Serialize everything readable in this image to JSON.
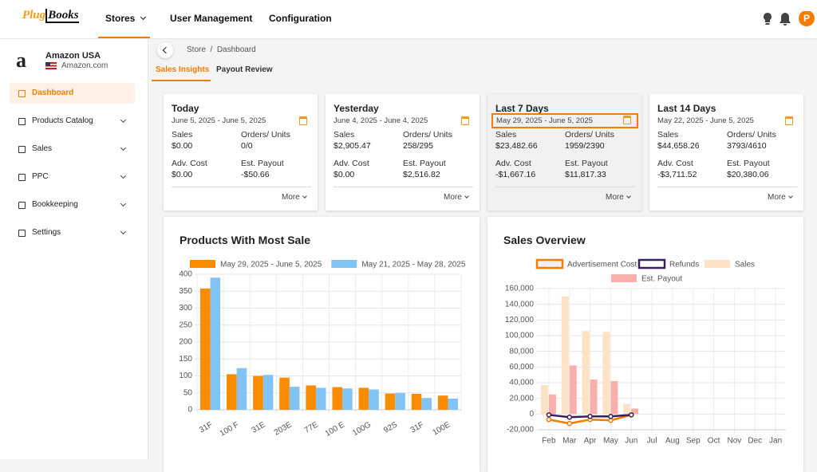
{
  "nav": {
    "logo": [
      "Plug",
      "Books"
    ],
    "items": [
      "Stores",
      "User Management",
      "Configuration"
    ],
    "avatar": "P"
  },
  "store": {
    "name": "Amazon USA",
    "domain": "Amazon.com"
  },
  "sidebar": [
    "Dashboard",
    "Products Catalog",
    "Sales",
    "PPC",
    "Bookkeeping",
    "Settings"
  ],
  "breadcrumb": [
    "Store",
    "Dashboard"
  ],
  "tabs": [
    "Sales Insights",
    "Payout Review"
  ],
  "selected_card": 2,
  "cards": [
    {
      "title": "Today",
      "range": "June 5, 2025 - June 5, 2025",
      "metrics": [
        {
          "label": "Sales",
          "value": "$0.00"
        },
        {
          "label": "Orders/ Units",
          "value": "0/0"
        },
        {
          "label": "Adv. Cost",
          "value": "$0.00"
        },
        {
          "label": "Est. Payout",
          "value": "-$50.66"
        }
      ],
      "more": "More"
    },
    {
      "title": "Yesterday",
      "range": "June 4, 2025 - June 4, 2025",
      "metrics": [
        {
          "label": "Sales",
          "value": "$2,905.47"
        },
        {
          "label": "Orders/ Units",
          "value": "258/295"
        },
        {
          "label": "Adv. Cost",
          "value": "$0.00"
        },
        {
          "label": "Est. Payout",
          "value": "$2,516.82"
        }
      ],
      "more": "More"
    },
    {
      "title": "Last 7 Days",
      "range": "May 29, 2025 - June 5, 2025",
      "metrics": [
        {
          "label": "Sales",
          "value": "$23,482.66"
        },
        {
          "label": "Orders/ Units",
          "value": "1959/2390"
        },
        {
          "label": "Adv. Cost",
          "value": "-$1,667.16"
        },
        {
          "label": "Est. Payout",
          "value": "$11,817.33"
        }
      ],
      "more": "More"
    },
    {
      "title": "Last 14 Days",
      "range": "May 22, 2025 - June 5, 2025",
      "metrics": [
        {
          "label": "Sales",
          "value": "$44,658.26"
        },
        {
          "label": "Orders/ Units",
          "value": "3793/4610"
        },
        {
          "label": "Adv. Cost",
          "value": "-$3,711.52"
        },
        {
          "label": "Est. Payout",
          "value": "$20,380.06"
        }
      ],
      "more": "More"
    }
  ],
  "charts": [
    {
      "type": "bar",
      "title": "Products With Most Sale",
      "grid": true,
      "categories": [
        "31F",
        "100 F",
        "31E",
        "203E",
        "77E",
        "100 E",
        "100G",
        "92S",
        "31F",
        "100E"
      ],
      "series": [
        {
          "name": "May 29, 2025 - June 5, 2025",
          "color": "#fb8c00",
          "values": [
            358,
            105,
            100,
            95,
            72,
            67,
            65,
            48,
            47,
            42
          ]
        },
        {
          "name": "May 21, 2025 - May 28, 2025",
          "color": "#82c3f6",
          "values": [
            390,
            123,
            103,
            68,
            65,
            63,
            60,
            50,
            35,
            33
          ]
        }
      ],
      "ylim": [
        0,
        400
      ],
      "yticks": [
        0,
        50,
        100,
        150,
        200,
        250,
        300,
        350,
        400
      ]
    },
    {
      "type": "combo",
      "title": "Sales Overview",
      "grid": true,
      "categories": [
        "Feb",
        "Mar",
        "Apr",
        "May",
        "Jun",
        "Jul",
        "Aug",
        "Sep",
        "Oct",
        "Nov",
        "Dec",
        "Jan"
      ],
      "series": [
        {
          "name": "Advertisement Cost",
          "type": "line",
          "color": "#f57c00",
          "values": [
            -7000,
            -12000,
            -7000,
            -8000,
            -1000,
            null,
            null,
            null,
            null,
            null,
            null,
            null
          ]
        },
        {
          "name": "Refunds",
          "type": "line",
          "color": "#3b1f5c",
          "values": [
            -1000,
            -4000,
            -3000,
            -3000,
            -1000,
            null,
            null,
            null,
            null,
            null,
            null,
            null
          ]
        },
        {
          "name": "Sales",
          "type": "bar",
          "color": "#fde2c6",
          "values": [
            37000,
            150000,
            106000,
            105000,
            13000,
            null,
            null,
            null,
            null,
            null,
            null,
            null
          ]
        },
        {
          "name": "Est. Payout",
          "type": "bar",
          "color": "#f9afac",
          "values": [
            25000,
            62000,
            44000,
            42000,
            7000,
            null,
            null,
            null,
            null,
            null,
            null,
            null
          ]
        }
      ],
      "ylim": [
        -20000,
        160000
      ],
      "yticks": [
        {
          "value": -20000,
          "label": "-20,000"
        },
        0,
        {
          "value": 20000,
          "label": "20,000"
        },
        {
          "value": 40000,
          "label": "40,000"
        },
        {
          "value": 60000,
          "label": "60,000"
        },
        {
          "value": 80000,
          "label": "80,000"
        },
        {
          "value": 100000,
          "label": "100,000"
        },
        {
          "value": 120000,
          "label": "120,000"
        },
        {
          "value": 140000,
          "label": "140,000"
        },
        {
          "value": 160000,
          "label": "160,000"
        }
      ]
    }
  ]
}
